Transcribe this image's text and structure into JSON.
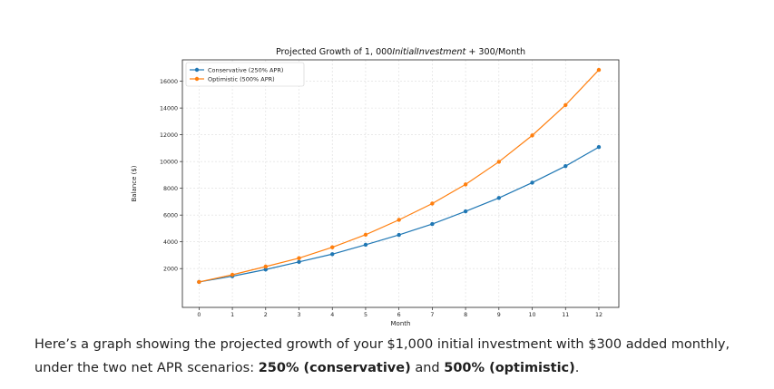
{
  "chart_data": {
    "type": "line",
    "title": "Projected Growth of 1,000 Initial Investment + 300/Month",
    "title_parts": {
      "prefix": "Projected Growth of 1, 000",
      "italic": "InitialInvestment",
      "suffix": " + 300/Month"
    },
    "xlabel": "Month",
    "ylabel": "Balance ($)",
    "x": [
      0,
      1,
      2,
      3,
      4,
      5,
      6,
      7,
      8,
      9,
      10,
      11,
      12
    ],
    "xlim": [
      -0.5,
      12.6
    ],
    "ylim": [
      -900,
      17600
    ],
    "yticks": [
      2000,
      4000,
      6000,
      8000,
      10000,
      12000,
      14000,
      16000
    ],
    "grid": true,
    "legend_position": "top-left",
    "series": [
      {
        "name": "Conservative (250% APR)",
        "color": "#1f77b4",
        "values": [
          1000,
          1430,
          1930,
          2500,
          3080,
          3780,
          4520,
          5330,
          6280,
          7280,
          8420,
          9660,
          11080
        ]
      },
      {
        "name": "Optimistic (500% APR)",
        "color": "#ff7f0e",
        "values": [
          1000,
          1540,
          2150,
          2780,
          3590,
          4530,
          5640,
          6860,
          8290,
          9980,
          11950,
          14220,
          16850
        ]
      }
    ]
  },
  "caption": {
    "line1": "Here’s a graph showing the projected growth of your $1,000 initial investment with $300 added monthly,",
    "line2_prefix": "under the two net APR scenarios: ",
    "bold1": "250% (conservative)",
    "and": " and ",
    "bold2": "500% (optimistic)",
    "end": "."
  }
}
